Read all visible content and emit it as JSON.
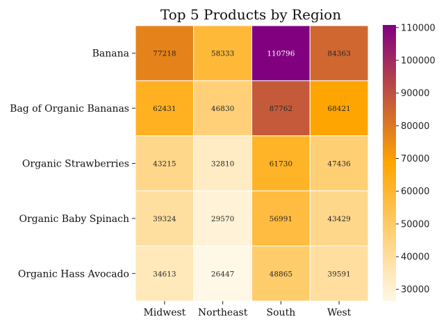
{
  "chart_data": {
    "type": "heatmap",
    "title": "Top 5 Products by Region",
    "xlabel": "",
    "ylabel": "",
    "x_categories": [
      "Midwest",
      "Northeast",
      "South",
      "West"
    ],
    "y_categories": [
      "Banana",
      "Bag of Organic Bananas",
      "Organic Strawberries",
      "Organic Baby Spinach",
      "Organic Hass Avocado"
    ],
    "values": [
      [
        77218,
        58333,
        110796,
        84363
      ],
      [
        62431,
        46830,
        87762,
        68421
      ],
      [
        43215,
        32810,
        61730,
        47436
      ],
      [
        39324,
        29570,
        56991,
        43429
      ],
      [
        34613,
        26447,
        48865,
        39591
      ]
    ],
    "colorbar": {
      "min": 26447,
      "max": 110796,
      "ticks": [
        30000,
        40000,
        50000,
        60000,
        70000,
        80000,
        90000,
        100000,
        110000
      ],
      "colors": [
        "#fff8e7",
        "#ffa500",
        "#800080"
      ]
    },
    "annotations": true
  }
}
